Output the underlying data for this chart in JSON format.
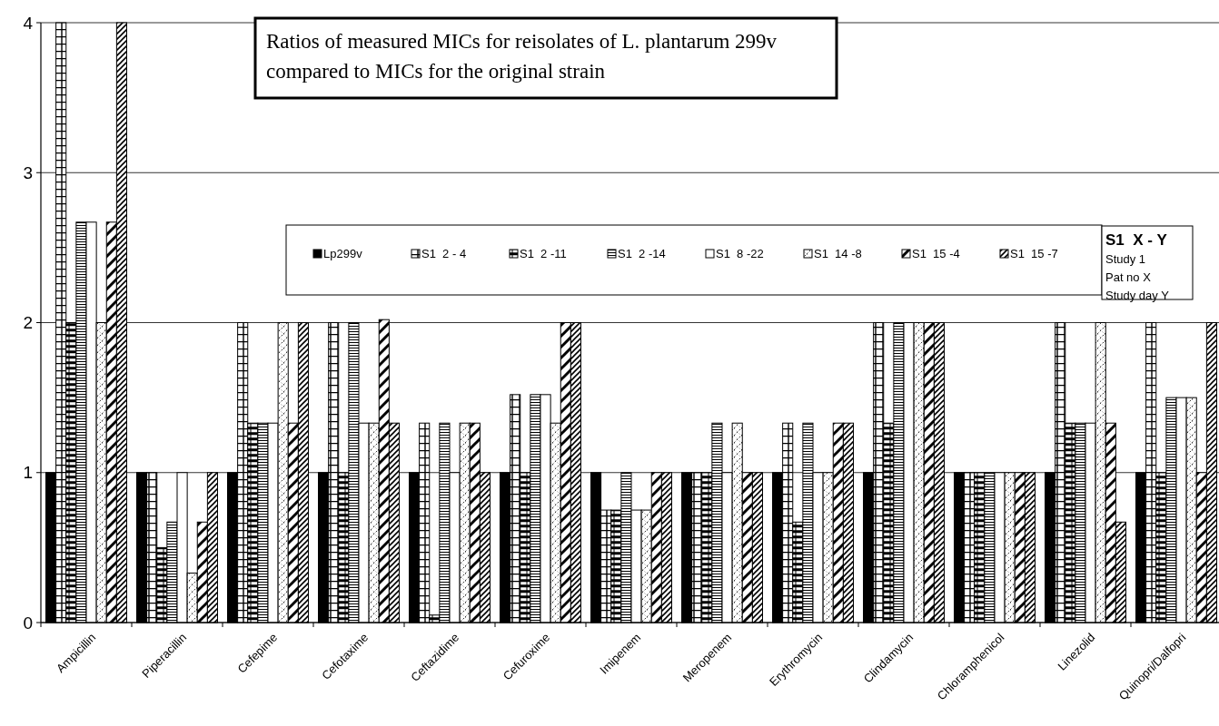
{
  "chart_data": {
    "type": "bar",
    "title": "Ratios of measured MICs for reisolates of L. plantarum 299v compared to MICs for the original strain",
    "categories": [
      "Ampicillin",
      "Piperacillin",
      "Cefepime",
      "Cefotaxime",
      "Ceftazidime",
      "Cefuroxime",
      "Imipenem",
      "Meropenem",
      "Erythromycin",
      "Clindamycin",
      "Chloramphenicol",
      "Linezolid",
      "Quinopri/Dalfopri"
    ],
    "series": [
      {
        "name": "Lp299v",
        "color": "#000000",
        "values": [
          1,
          1,
          1,
          1,
          1,
          1,
          1,
          1,
          1,
          1,
          1,
          1,
          1
        ]
      },
      {
        "name": "S1  2 - 4",
        "color": "#000000",
        "values": [
          4,
          1,
          2,
          2,
          1.33,
          1.52,
          0.75,
          1,
          1.33,
          2,
          1,
          2,
          2
        ]
      },
      {
        "name": "S1  2 -11",
        "color": "#000000",
        "values": [
          2,
          0.5,
          1.33,
          1,
          0.05,
          1,
          0.75,
          1,
          0.67,
          1.33,
          1,
          1.33,
          1
        ]
      },
      {
        "name": "S1  2 -14",
        "color": "#000000",
        "values": [
          2.67,
          0.67,
          1.33,
          2,
          1.33,
          1.52,
          1,
          1.33,
          1.33,
          2,
          1,
          1.33,
          1.5
        ]
      },
      {
        "name": "S1  8 -22",
        "color": "#ffffff",
        "values": [
          2.67,
          1,
          1.33,
          1.33,
          1,
          1.52,
          0.75,
          1,
          1,
          2,
          1,
          1.33,
          1.5
        ]
      },
      {
        "name": "S1  14 -8",
        "color": "#000000",
        "values": [
          2,
          0.33,
          2,
          1.33,
          1.33,
          1.33,
          0.75,
          1.33,
          1,
          2,
          1,
          2,
          1.5
        ]
      },
      {
        "name": "S1  15 -4",
        "color": "#000000",
        "values": [
          2.67,
          0.67,
          1.33,
          2.02,
          1.33,
          2,
          1,
          1,
          1.33,
          2,
          1,
          1.33,
          1
        ]
      },
      {
        "name": "S1  15 -7",
        "color": "#000000",
        "values": [
          4,
          1,
          2,
          1.33,
          1,
          2,
          1,
          1,
          1.33,
          2,
          1,
          0.67,
          2
        ]
      }
    ],
    "ylim": [
      0,
      4
    ],
    "yticks": [
      0,
      1,
      2,
      3,
      4
    ],
    "grid": "y",
    "legend": "top",
    "annotations": [
      "S1  X - Y",
      "Study 1",
      "Pat no X",
      "Study day Y"
    ]
  }
}
